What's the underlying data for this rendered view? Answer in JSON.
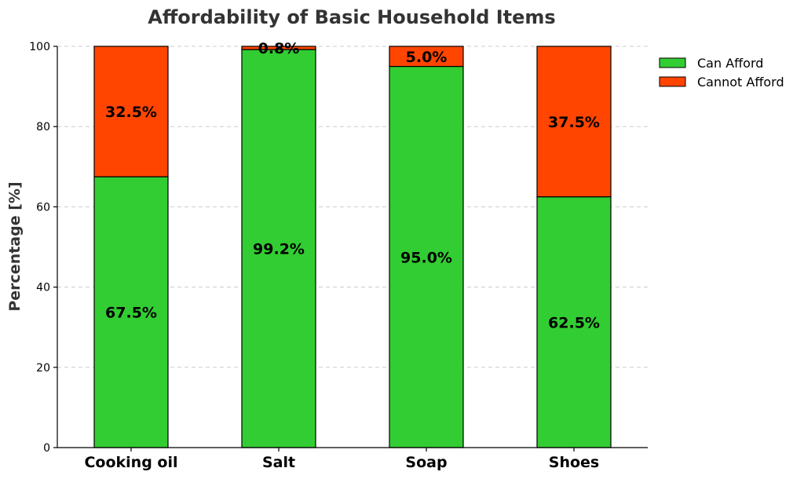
{
  "chart_data": {
    "type": "bar",
    "stacked": true,
    "title": "Affordability of Basic Household Items",
    "xlabel": "",
    "ylabel": "Percentage [%]",
    "ylim": [
      0,
      100
    ],
    "yticks": [
      "0",
      "20",
      "40",
      "60",
      "80",
      "100"
    ],
    "grid": "y-dashed",
    "legend_position": "top-right",
    "categories": [
      "Cooking oil",
      "Salt",
      "Soap",
      "Shoes"
    ],
    "series": [
      {
        "name": "Can Afford",
        "color": "#32CD32",
        "values": [
          67.5,
          99.2,
          95.0,
          62.5
        ],
        "labels": [
          "67.5%",
          "99.2%",
          "95.0%",
          "62.5%"
        ]
      },
      {
        "name": "Cannot Afford",
        "color": "#FF4500",
        "values": [
          32.5,
          0.8,
          5.0,
          37.5
        ],
        "labels": [
          "32.5%",
          "0.8%",
          "5.0%",
          "37.5%"
        ]
      }
    ]
  }
}
